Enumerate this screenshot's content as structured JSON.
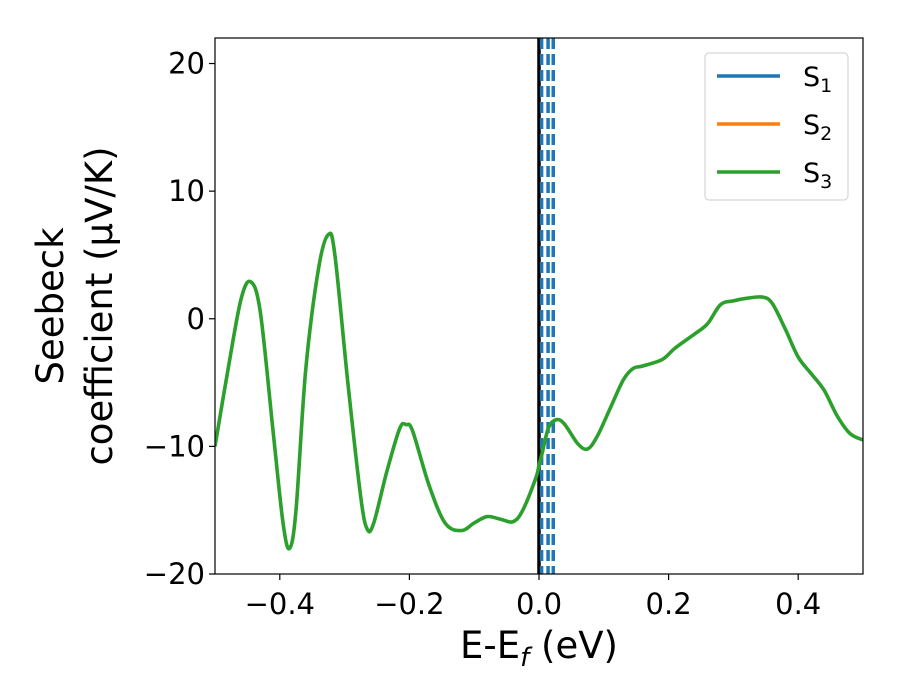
{
  "chart_data": {
    "type": "line",
    "xlabel": {
      "main": "E-E",
      "sub": "f",
      "rest": " (eV)"
    },
    "ylabel": {
      "line1": "Seebeck",
      "line2": "coefficient  (μV/K)"
    },
    "xlim": [
      -0.5,
      0.5
    ],
    "ylim": [
      -20,
      22
    ],
    "xticks": [
      -0.4,
      -0.2,
      0.0,
      0.2,
      0.4
    ],
    "xtick_labels": [
      "−0.4",
      "−0.2",
      "0.0",
      "0.2",
      "0.4"
    ],
    "yticks": [
      -20,
      -10,
      0,
      10,
      20
    ],
    "ytick_labels": [
      "−20",
      "−10",
      "0",
      "10",
      "20"
    ],
    "grid": false,
    "legend_position": "top-right",
    "vertical_lines": [
      {
        "x": 0.0,
        "style": "solid",
        "color": "#000000"
      },
      {
        "x": 0.004,
        "style": "dashed",
        "color": "#1f77b4"
      },
      {
        "x": 0.014,
        "style": "dashed",
        "color": "#1f77b4"
      },
      {
        "x": 0.022,
        "style": "dashed",
        "color": "#1f77b4"
      }
    ],
    "series": [
      {
        "name": "S",
        "sub": "1",
        "color": "#1f77b4",
        "points": []
      },
      {
        "name": "S",
        "sub": "2",
        "color": "#ff7f0e",
        "points": []
      },
      {
        "name": "S",
        "sub": "3",
        "color": "#2ca02c",
        "points": [
          [
            -0.5,
            -10
          ],
          [
            -0.48,
            -4
          ],
          [
            -0.46,
            1.5
          ],
          [
            -0.445,
            2.9
          ],
          [
            -0.43,
            0.5
          ],
          [
            -0.41,
            -9
          ],
          [
            -0.395,
            -16
          ],
          [
            -0.385,
            -18
          ],
          [
            -0.375,
            -15
          ],
          [
            -0.36,
            -4
          ],
          [
            -0.34,
            4
          ],
          [
            -0.325,
            6.6
          ],
          [
            -0.315,
            5
          ],
          [
            -0.295,
            -5
          ],
          [
            -0.275,
            -14
          ],
          [
            -0.265,
            -16.5
          ],
          [
            -0.255,
            -16
          ],
          [
            -0.235,
            -12
          ],
          [
            -0.215,
            -8.6
          ],
          [
            -0.205,
            -8.3
          ],
          [
            -0.195,
            -8.8
          ],
          [
            -0.17,
            -13
          ],
          [
            -0.145,
            -16
          ],
          [
            -0.12,
            -16.6
          ],
          [
            -0.1,
            -16
          ],
          [
            -0.08,
            -15.5
          ],
          [
            -0.06,
            -15.7
          ],
          [
            -0.04,
            -15.9
          ],
          [
            -0.025,
            -15
          ],
          [
            -0.005,
            -12.5
          ],
          [
            0.0,
            -11.5
          ],
          [
            0.005,
            -10.5
          ],
          [
            0.015,
            -8.5
          ],
          [
            0.028,
            -7.9
          ],
          [
            0.04,
            -8.3
          ],
          [
            0.06,
            -9.8
          ],
          [
            0.075,
            -10.2
          ],
          [
            0.09,
            -9.2
          ],
          [
            0.11,
            -7
          ],
          [
            0.13,
            -4.8
          ],
          [
            0.145,
            -3.9
          ],
          [
            0.16,
            -3.7
          ],
          [
            0.19,
            -3.2
          ],
          [
            0.21,
            -2.3
          ],
          [
            0.24,
            -1.2
          ],
          [
            0.26,
            -0.4
          ],
          [
            0.28,
            1.1
          ],
          [
            0.3,
            1.4
          ],
          [
            0.32,
            1.6
          ],
          [
            0.345,
            1.7
          ],
          [
            0.36,
            1.2
          ],
          [
            0.38,
            -0.8
          ],
          [
            0.4,
            -3
          ],
          [
            0.42,
            -4.3
          ],
          [
            0.44,
            -5.6
          ],
          [
            0.46,
            -7.6
          ],
          [
            0.48,
            -9
          ],
          [
            0.5,
            -9.5
          ]
        ]
      }
    ]
  }
}
